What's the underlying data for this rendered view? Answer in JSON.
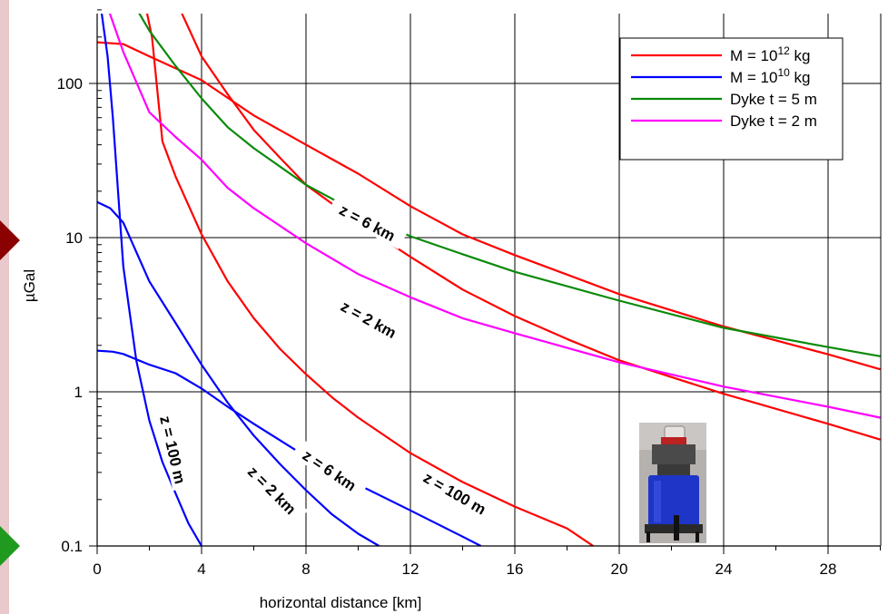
{
  "colors": {
    "page_background": "#e9c9cb",
    "mass_1e12": "#ff0000",
    "mass_1e10": "#0000ff",
    "dyke_5m": "#0a8a0a",
    "dyke_2m": "#ff00ff",
    "grid": "#000000",
    "marker_red": "#8b0000",
    "marker_green": "#1f9a1f"
  },
  "icons": {
    "side_marker_top": "diamond-marker-icon",
    "side_marker_bottom": "diamond-marker-icon",
    "instrument_photo": "gravimeter-photo-icon"
  },
  "chart_data": {
    "type": "line",
    "title": "",
    "xlabel": "horizontal distance [km]",
    "ylabel": "µGal",
    "xlim": [
      0,
      30
    ],
    "ylim": [
      0.1,
      350
    ],
    "yscale": "log",
    "grid": true,
    "legend_placement": "top-right",
    "x_ticks": [
      0,
      4,
      8,
      12,
      16,
      20,
      24,
      28
    ],
    "x_tick_labels": [
      "0",
      "4",
      "8",
      "12",
      "16",
      "20",
      "24",
      "28"
    ],
    "y_ticks": [
      0.1,
      1,
      10,
      100
    ],
    "y_tick_labels": [
      "0.1",
      "1",
      "10",
      "100"
    ],
    "legend": [
      {
        "base": "M = 10",
        "sup": "12",
        "unit": " kg",
        "color_key": "mass_1e12"
      },
      {
        "base": "M = 10",
        "sup": "10",
        "unit": " kg",
        "color_key": "mass_1e10"
      },
      {
        "base": "Dyke t = 5 m",
        "sup": "",
        "unit": "",
        "color_key": "dyke_5m"
      },
      {
        "base": "Dyke t = 2 m",
        "sup": "",
        "unit": "",
        "color_key": "dyke_2m"
      }
    ],
    "series": [
      {
        "group": "M = 10^12 kg",
        "depth": "z = 100 m",
        "color_key": "mass_1e12",
        "x": [
          1.8,
          2.1,
          2.5,
          3,
          4,
          5,
          6,
          7,
          8,
          9,
          10,
          12,
          14,
          16,
          18,
          19
        ],
        "y": [
          350,
          200,
          42,
          25,
          10.5,
          5.2,
          3.0,
          1.9,
          1.3,
          0.92,
          0.68,
          0.4,
          0.26,
          0.18,
          0.13,
          0.1
        ]
      },
      {
        "group": "M = 10^12 kg",
        "depth": "z = 2 km",
        "color_key": "mass_1e12",
        "x": [
          3,
          4,
          5,
          6,
          7,
          8,
          10,
          12,
          14,
          16,
          18,
          20,
          24,
          28,
          30
        ],
        "y": [
          350,
          150,
          85,
          50,
          33,
          22,
          12.5,
          7.5,
          4.6,
          3.1,
          2.2,
          1.6,
          0.97,
          0.62,
          0.49
        ]
      },
      {
        "group": "M = 10^12 kg",
        "depth": "z = 6 km",
        "color_key": "mass_1e12",
        "x": [
          0,
          1,
          2,
          4,
          6,
          8,
          10,
          12,
          14,
          16,
          20,
          24,
          28,
          30
        ],
        "y": [
          185,
          180,
          150,
          105,
          62,
          40,
          26,
          16,
          10.5,
          7.7,
          4.3,
          2.65,
          1.75,
          1.4
        ]
      },
      {
        "group": "M = 10^10 kg",
        "depth": "z = 100 m",
        "color_key": "mass_1e10",
        "x": [
          0.1,
          0.4,
          0.6,
          1,
          1.5,
          2,
          2.5,
          3,
          3.5,
          4
        ],
        "y": [
          350,
          150,
          60,
          6.5,
          1.6,
          0.65,
          0.35,
          0.22,
          0.14,
          0.1
        ]
      },
      {
        "group": "M = 10^10 kg",
        "depth": "z = 2 km",
        "color_key": "mass_1e10",
        "x": [
          0,
          0.5,
          1,
          2,
          3,
          4,
          5,
          6,
          7,
          8,
          9,
          10,
          10.8
        ],
        "y": [
          17,
          15.5,
          12.5,
          5.2,
          2.8,
          1.5,
          0.85,
          0.52,
          0.34,
          0.23,
          0.16,
          0.12,
          0.1
        ]
      },
      {
        "group": "M = 10^10 kg",
        "depth": "z = 6 km",
        "color_key": "mass_1e10",
        "x": [
          0,
          0.6,
          1,
          2,
          3,
          4,
          5,
          6,
          8,
          10,
          12,
          14,
          14.7
        ],
        "y": [
          1.85,
          1.82,
          1.76,
          1.5,
          1.32,
          1.05,
          0.8,
          0.62,
          0.38,
          0.25,
          0.17,
          0.115,
          0.1
        ]
      },
      {
        "group": "Dyke t = 5 m",
        "depth": "",
        "color_key": "dyke_5m",
        "x": [
          1.3,
          2,
          3,
          4,
          5,
          6,
          8,
          10,
          12,
          14,
          16,
          20,
          24,
          28,
          30
        ],
        "y": [
          350,
          220,
          130,
          80,
          52,
          38,
          22,
          14.5,
          10.2,
          7.8,
          6.0,
          3.9,
          2.6,
          1.95,
          1.7
        ]
      },
      {
        "group": "Dyke t = 2 m",
        "depth": "",
        "color_key": "dyke_2m",
        "x": [
          0.3,
          1,
          2,
          3,
          4,
          5,
          6,
          8,
          10,
          12,
          14,
          16,
          20,
          24,
          28,
          30
        ],
        "y": [
          350,
          160,
          65,
          45,
          32,
          21,
          15.5,
          9.2,
          5.8,
          4.1,
          3.0,
          2.4,
          1.55,
          1.08,
          0.8,
          0.68
        ]
      }
    ],
    "annotations": [
      {
        "text": "z = 6 km",
        "x": 10.35,
        "y": 12.5,
        "angle": 28
      },
      {
        "text": "z = 2 km",
        "x": 10.4,
        "y": 2.95,
        "angle": 29
      },
      {
        "text": "z = 100 m",
        "x": 13.7,
        "y": 0.22,
        "angle": 30
      },
      {
        "text": "z = 6 km",
        "x": 8.9,
        "y": 0.31,
        "angle": 34
      },
      {
        "text": "z = 2 km",
        "x": 6.7,
        "y": 0.23,
        "angle": 45
      },
      {
        "text": "z = 100 m",
        "x": 2.9,
        "y": 0.42,
        "angle": 77
      }
    ]
  }
}
